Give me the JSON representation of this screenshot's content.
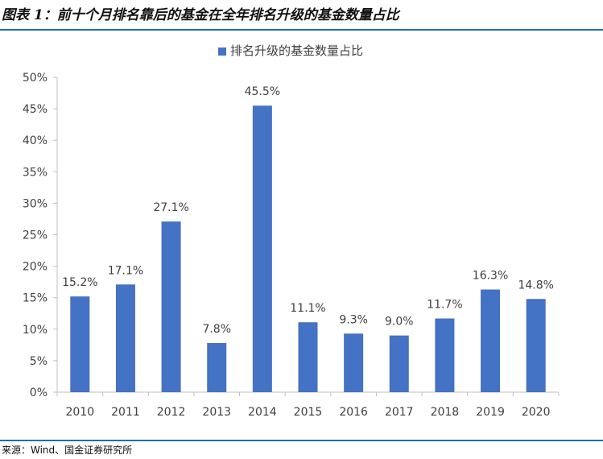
{
  "figure": {
    "title": "图表 1：前十个月排名靠后的基金在全年排名升级的基金数量占比",
    "source": "来源：Wind、国金证券研究所"
  },
  "colors": {
    "bar": "#4472c4",
    "rule": "#1f6fb5",
    "axis": "#bfbfbf",
    "text": "#404040"
  },
  "chart_data": {
    "type": "bar",
    "legend": "排名升级的基金数量占比",
    "legend_position": "top-center",
    "grid": false,
    "categories": [
      "2010",
      "2011",
      "2012",
      "2013",
      "2014",
      "2015",
      "2016",
      "2017",
      "2018",
      "2019",
      "2020"
    ],
    "series": [
      {
        "name": "排名升级的基金数量占比",
        "values": [
          15.2,
          17.1,
          27.1,
          7.8,
          45.5,
          11.1,
          9.3,
          9.0,
          11.7,
          16.3,
          14.8
        ]
      }
    ],
    "data_labels": [
      "15.2%",
      "17.1%",
      "27.1%",
      "7.8%",
      "45.5%",
      "11.1%",
      "9.3%",
      "9.0%",
      "11.7%",
      "16.3%",
      "14.8%"
    ],
    "ylim": [
      0,
      50
    ],
    "yticks": [
      0,
      5,
      10,
      15,
      20,
      25,
      30,
      35,
      40,
      45,
      50
    ],
    "ytick_labels": [
      "0%",
      "5%",
      "10%",
      "15%",
      "20%",
      "25%",
      "30%",
      "35%",
      "40%",
      "45%",
      "50%"
    ],
    "xlabel": "",
    "ylabel": ""
  }
}
